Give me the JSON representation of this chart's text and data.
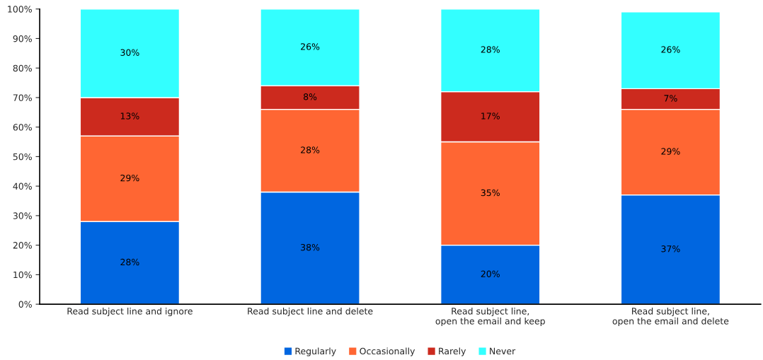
{
  "chart_data": {
    "type": "bar",
    "stacked": true,
    "categories": [
      "Read subject line and ignore",
      "Read subject line and delete",
      "Read subject line,\nopen the email and keep",
      "Read subject line,\nopen the email and delete"
    ],
    "series": [
      {
        "name": "Regularly",
        "color": "#0066e0",
        "values": [
          28,
          38,
          20,
          37
        ],
        "value_labels": [
          "28%",
          "38%",
          "20%",
          "37%"
        ]
      },
      {
        "name": "Occasionally",
        "color": "#ff6633",
        "values": [
          29,
          28,
          35,
          29
        ],
        "value_labels": [
          "29%",
          "28%",
          "35%",
          "29%"
        ]
      },
      {
        "name": "Rarely",
        "color": "#cc2a1e",
        "values": [
          13,
          8,
          17,
          7
        ],
        "value_labels": [
          "13%",
          "8%",
          "17%",
          "7%"
        ]
      },
      {
        "name": "Never",
        "color": "#33ffff",
        "values": [
          30,
          26,
          28,
          26
        ],
        "value_labels": [
          "30%",
          "26%",
          "28%",
          "26%"
        ]
      }
    ],
    "ylim": [
      0,
      100
    ],
    "yticks": [
      {
        "value": 0,
        "label": "0%"
      },
      {
        "value": 10,
        "label": "10%"
      },
      {
        "value": 20,
        "label": "20%"
      },
      {
        "value": 30,
        "label": "30%"
      },
      {
        "value": 40,
        "label": "40%"
      },
      {
        "value": 50,
        "label": "50%"
      },
      {
        "value": 60,
        "label": "60%"
      },
      {
        "value": 70,
        "label": "70%"
      },
      {
        "value": 80,
        "label": "80%"
      },
      {
        "value": 90,
        "label": "90%"
      },
      {
        "value": 100,
        "label": "100%"
      }
    ],
    "grid": false,
    "legend": "bottom"
  }
}
